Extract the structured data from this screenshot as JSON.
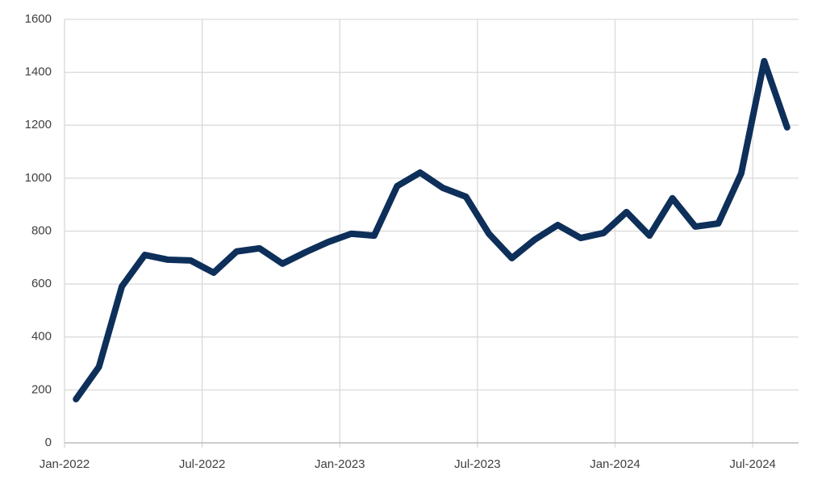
{
  "chart_data": {
    "type": "line",
    "x": [
      "2022-01",
      "2022-02",
      "2022-03",
      "2022-04",
      "2022-05",
      "2022-06",
      "2022-07",
      "2022-08",
      "2022-09",
      "2022-10",
      "2022-11",
      "2022-12",
      "2023-01",
      "2023-02",
      "2023-03",
      "2023-04",
      "2023-05",
      "2023-06",
      "2023-07",
      "2023-08",
      "2023-09",
      "2023-10",
      "2023-11",
      "2023-12",
      "2024-01",
      "2024-02",
      "2024-03",
      "2024-04",
      "2024-05",
      "2024-06",
      "2024-07",
      "2024-08"
    ],
    "series": [
      {
        "color": "#0d2f5a",
        "values": [
          165,
          287,
          591,
          710,
          692,
          689,
          643,
          723,
          735,
          677,
          720,
          759,
          790,
          783,
          970,
          1021,
          963,
          930,
          790,
          698,
          768,
          823,
          774,
          793,
          872,
          783,
          924,
          817,
          829,
          1018,
          1442,
          1192
        ]
      }
    ],
    "xticks": [
      {
        "value": "2022-01",
        "label": "Jan-2022"
      },
      {
        "value": "2022-07",
        "label": "Jul-2022"
      },
      {
        "value": "2023-01",
        "label": "Jan-2023"
      },
      {
        "value": "2023-07",
        "label": "Jul-2023"
      },
      {
        "value": "2024-01",
        "label": "Jan-2024"
      },
      {
        "value": "2024-07",
        "label": "Jul-2024"
      }
    ],
    "ylim": [
      0,
      1600
    ],
    "yticks": [
      0,
      200,
      400,
      600,
      800,
      1000,
      1200,
      1400,
      1600
    ],
    "grid": true
  }
}
